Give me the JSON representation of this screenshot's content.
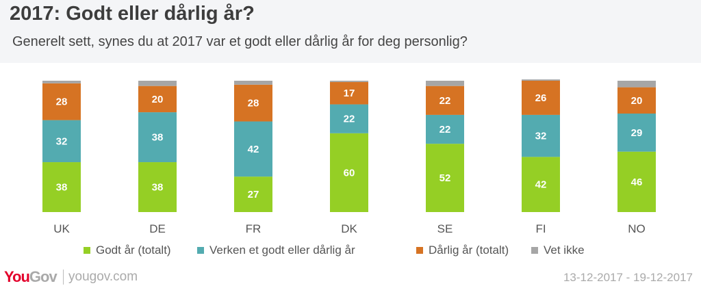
{
  "header": {
    "title": "2017: Godt eller dårlig år?",
    "subtitle": "Generelt sett, synes du at 2017 var et godt eller dårlig år for deg personlig?"
  },
  "footer": {
    "logo_you": "You",
    "logo_gov": "Gov",
    "url": "yougov.com",
    "date_range": "13-12-2017 - 19-12-2017"
  },
  "chart_data": {
    "type": "bar",
    "stacked": true,
    "title": "2017: Godt eller dårlig år?",
    "subtitle": "Generelt sett, synes du at 2017 var et godt eller dårlig år for deg personlig?",
    "xlabel": "",
    "ylabel": "",
    "ylim": [
      0,
      100
    ],
    "grid": false,
    "legend_position": "bottom",
    "categories": [
      "UK",
      "DE",
      "FR",
      "DK",
      "SE",
      "FI",
      "NO"
    ],
    "series": [
      {
        "name": "Godt år (totalt)",
        "color": "#95cf25",
        "values": [
          38,
          38,
          27,
          60,
          52,
          42,
          46
        ],
        "labels_shown": true
      },
      {
        "name": "Verken et godt eller dårlig år",
        "color": "#53abb0",
        "values": [
          32,
          38,
          42,
          22,
          22,
          32,
          29
        ],
        "labels_shown": true
      },
      {
        "name": "Dårlig år (totalt)",
        "color": "#d67323",
        "values": [
          28,
          20,
          28,
          17,
          22,
          26,
          20
        ],
        "labels_shown": true
      },
      {
        "name": "Vet ikke",
        "color": "#a6a6a6",
        "values": [
          2,
          4,
          3,
          1,
          4,
          1,
          5
        ],
        "labels_shown": false
      }
    ]
  }
}
